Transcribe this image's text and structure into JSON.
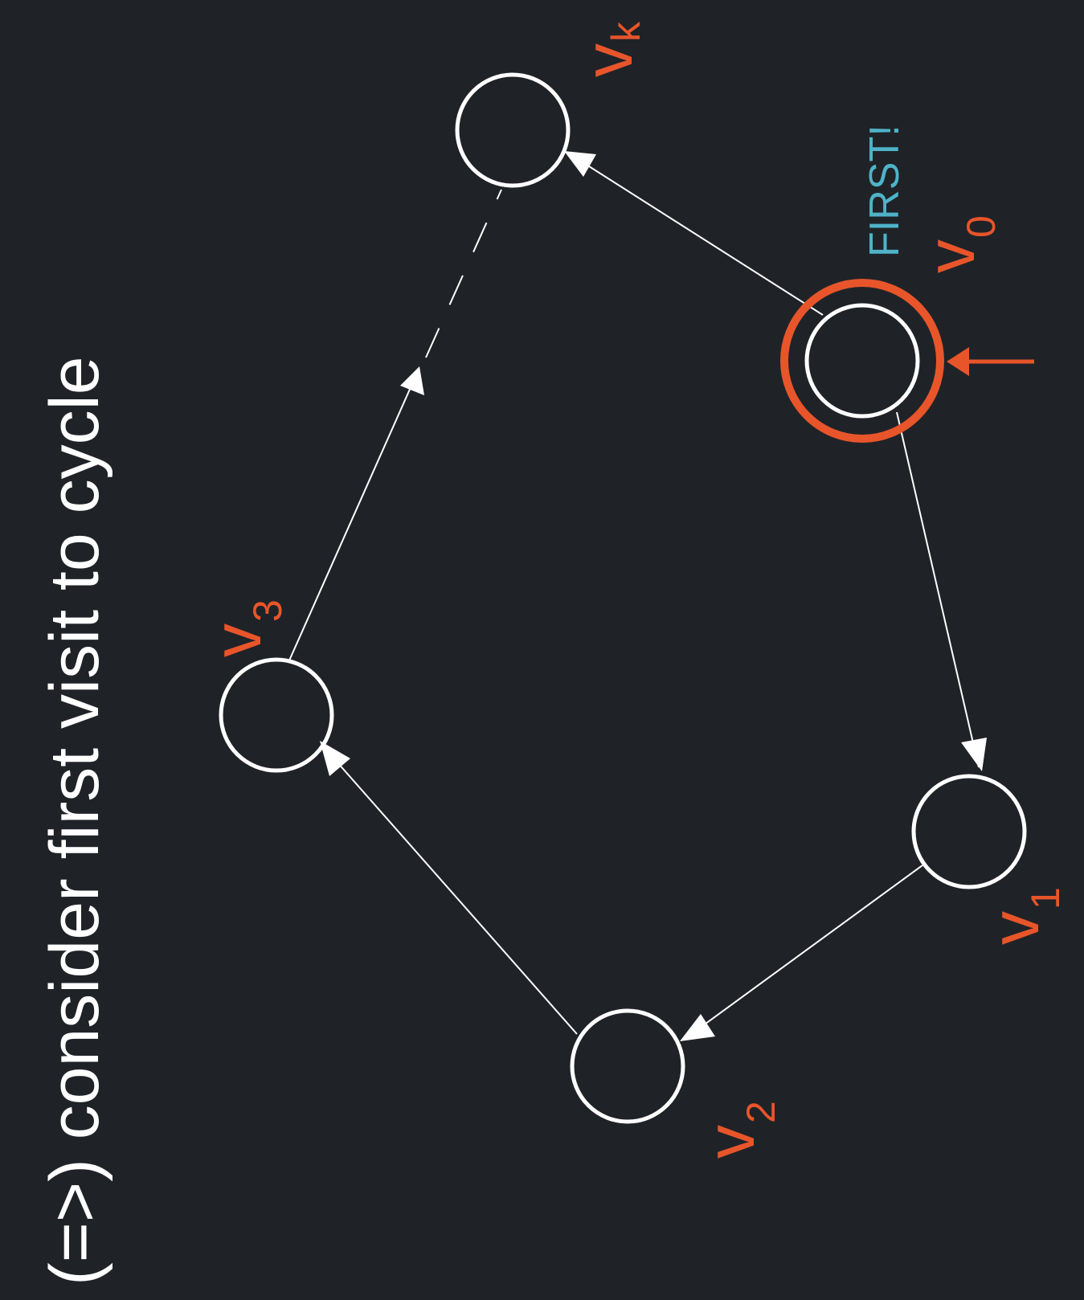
{
  "title": "(=>) consider first visit to cycle",
  "first_label": "FIRST!",
  "nodes": [
    {
      "id": "v0",
      "label": "v",
      "sub": "0"
    },
    {
      "id": "v1",
      "label": "v",
      "sub": "1"
    },
    {
      "id": "v2",
      "label": "v",
      "sub": "2"
    },
    {
      "id": "v3",
      "label": "v",
      "sub": "3"
    },
    {
      "id": "vk",
      "label": "v",
      "sub": "k"
    }
  ],
  "colors": {
    "background": "#1f2328",
    "node_stroke": "#ffffff",
    "highlight": "#e8552a",
    "first_text": "#4fb3c8"
  }
}
